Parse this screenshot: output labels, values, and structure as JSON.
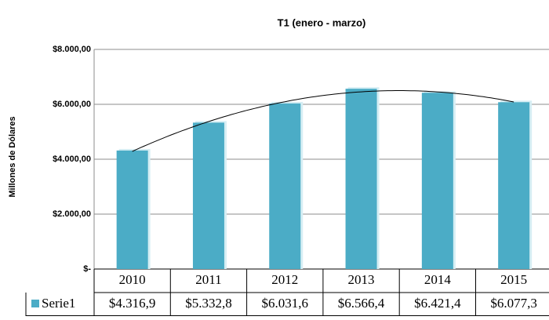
{
  "chart_data": {
    "type": "bar",
    "title": "T1 (enero - marzo)",
    "y_label": "Millones de Dólares",
    "categories": [
      "2010",
      "2011",
      "2012",
      "2013",
      "2014",
      "2015"
    ],
    "series": [
      {
        "name": "Serie1",
        "color": "#4bacc6",
        "values": [
          4316.9,
          5332.8,
          6031.6,
          6566.4,
          6421.4,
          6077.3
        ],
        "value_labels": [
          "$4.316,9",
          "$5.332,8",
          "$6.031,6",
          "$6.566,4",
          "$6.421,4",
          "$6.077,3"
        ]
      }
    ],
    "ylim": [
      0,
      8000
    ],
    "yticks": [
      {
        "value": 0,
        "label": "$-"
      },
      {
        "value": 2000,
        "label": "$2.000,00"
      },
      {
        "value": 4000,
        "label": "$4.000,00"
      },
      {
        "value": 6000,
        "label": "$6.000,00"
      },
      {
        "value": 8000,
        "label": "$8.000,00"
      }
    ],
    "grid": true,
    "trendline": "polynomial",
    "legend": "table"
  }
}
